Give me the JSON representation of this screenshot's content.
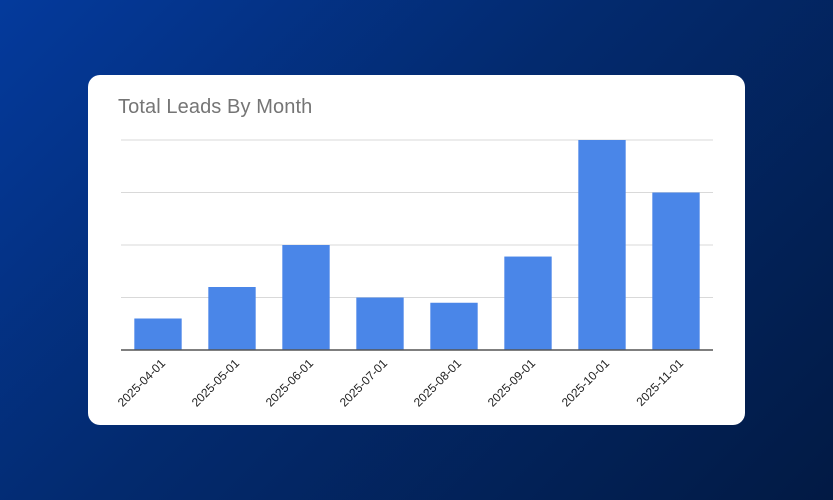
{
  "chart_data": {
    "type": "bar",
    "title": "Total Leads By Month",
    "categories": [
      "2025-04-01",
      "2025-05-01",
      "2025-06-01",
      "2025-07-01",
      "2025-08-01",
      "2025-09-01",
      "2025-10-01",
      "2025-11-01"
    ],
    "values": [
      6,
      12,
      20,
      10,
      9,
      17.8,
      40,
      30
    ],
    "ylim": [
      0,
      40
    ],
    "grid": true,
    "y_tick_labels_shown": false,
    "bar_color": "#4a86e8"
  }
}
